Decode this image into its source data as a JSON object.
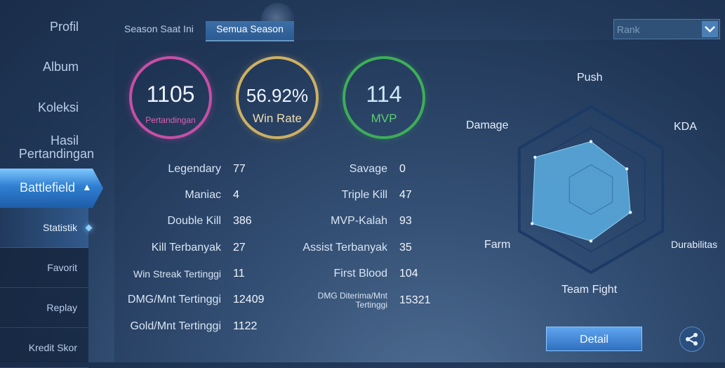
{
  "sidebar": {
    "items": [
      "Profil",
      "Album",
      "Koleksi"
    ],
    "hasil_line1": "Hasil",
    "hasil_line2": "Pertandingan",
    "battlefield": "Battlefield",
    "submenu": [
      "Statistik",
      "Favorit",
      "Replay",
      "Kredit Skor"
    ]
  },
  "tabs": [
    "Season Saat Ini",
    "Semua Season"
  ],
  "active_tab": "Semua Season",
  "rank_select": {
    "value": "Rank"
  },
  "summary": {
    "matches": {
      "value": "1105",
      "label": "Pertandingan"
    },
    "win_rate": {
      "value": "56.92%",
      "label": "Win Rate"
    },
    "mvp": {
      "value": "114",
      "label": "MVP"
    }
  },
  "stats_left": [
    {
      "label": "Legendary",
      "value": "77"
    },
    {
      "label": "Maniac",
      "value": "4"
    },
    {
      "label": "Double Kill",
      "value": "386"
    },
    {
      "label": "Kill Terbanyak",
      "value": "27"
    },
    {
      "label": "Win Streak Tertinggi",
      "value": "11"
    },
    {
      "label": "DMG/Mnt Tertinggi",
      "value": "12409"
    },
    {
      "label": "Gold/Mnt Tertinggi",
      "value": "1122"
    }
  ],
  "stats_right": [
    {
      "label": "Savage",
      "value": "0"
    },
    {
      "label": "Triple Kill",
      "value": "47"
    },
    {
      "label": "MVP-Kalah",
      "value": "93"
    },
    {
      "label": "Assist Terbanyak",
      "value": "35"
    },
    {
      "label": "First Blood",
      "value": "104"
    },
    {
      "label": "DMG Diterima/Mnt",
      "label2": "Tertinggi",
      "value": "15321"
    }
  ],
  "radar": {
    "axes": [
      "Push",
      "KDA",
      "Durabilitas",
      "Team Fight",
      "Farm",
      "Damage"
    ],
    "values": [
      0.58,
      0.5,
      0.55,
      0.62,
      0.82,
      0.78
    ],
    "fill_color": "#59a9dc",
    "grid_color": "#1c3a66"
  },
  "detail_button": "Detail",
  "colors": {
    "matches_ring": "#c64fa6",
    "win_rate_ring": "#cdb063",
    "mvp_ring": "#3dae58",
    "accent": "#4b9ae8"
  }
}
